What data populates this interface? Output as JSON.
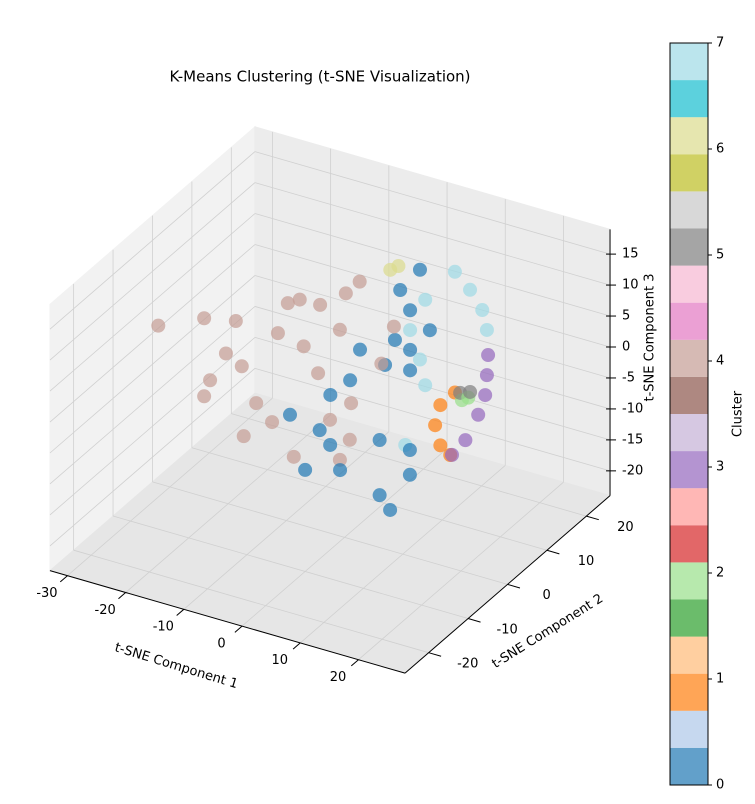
{
  "chart_data": {
    "type": "scatter3d",
    "title": "K-Means Clustering (t-SNE Visualization)",
    "x_label": "t-SNE Component 1",
    "y_label": "t-SNE Component 2",
    "z_label": "t-SNE Component 3",
    "xlim": [
      -33,
      28
    ],
    "ylim": [
      -26,
      26
    ],
    "zlim": [
      -24,
      19
    ],
    "xticks": [
      -30,
      -20,
      -10,
      0,
      10,
      20
    ],
    "yticks": [
      -20,
      -10,
      0,
      10,
      20
    ],
    "zticks": [
      -20,
      -15,
      -10,
      -5,
      0,
      5,
      10,
      15
    ],
    "grid": true,
    "alpha": 0.7,
    "series": [
      {
        "color": "#1f77b4",
        "x": [
          2.8,
          -0.6,
          1.1,
          4.5,
          -1.5,
          1.1,
          -3.2,
          -7.5,
          -9.2,
          -12.6,
          1.1,
          -2.6,
          2.5,
          4.3,
          0,
          6,
          12.8,
          18,
          12.8,
          18,
          14.6
        ],
        "y": [
          15,
          15,
          15,
          15,
          15,
          15,
          15,
          15,
          15,
          15,
          15,
          -10,
          -10,
          -10,
          -10,
          -10,
          -10,
          -10,
          -10,
          -10,
          -10
        ],
        "z": [
          11.7,
          7.5,
          4.7,
          2.4,
          -0.8,
          -1.7,
          -5.3,
          -4,
          -9.4,
          -12.7,
          -5,
          0.6,
          -0.5,
          -2.4,
          -7.6,
          -6,
          0.7,
          0.5,
          -8.2,
          -3.5,
          -10.1
        ]
      },
      {
        "color": "#ff7f0e",
        "x": [
          8.8,
          6.3,
          5.4,
          6.3,
          8
        ],
        "y": [
          15,
          15,
          15,
          15,
          15
        ],
        "z": [
          -6.5,
          -9.2,
          -12.7,
          -15.7,
          -16.8
        ]
      },
      {
        "color": "#98df8a",
        "x": [
          10,
          11.1
        ],
        "y": [
          15,
          15
        ],
        "z": [
          -7.4,
          -6.7
        ]
      },
      {
        "color": "#9467bd",
        "x": [
          14.5,
          14.3,
          14,
          12.8,
          10.6,
          8.3
        ],
        "y": [
          15,
          15,
          15,
          15,
          15,
          15
        ],
        "z": [
          1.1,
          -2.2,
          -5.5,
          -9,
          -13.7,
          -16.7
        ]
      },
      {
        "color": "#c49c94",
        "x": [
          -32,
          -24.8,
          -18,
          -11.1,
          -4.2,
          0.9,
          2.6,
          -7.7,
          -16.3,
          -23.1,
          -24.8,
          -14.5,
          -5.9,
          -0.8,
          1.8,
          0.9,
          -18,
          -11.1,
          -2.5,
          7.8,
          7,
          -7.7,
          -12.8,
          -19.7,
          -0.8,
          -9.4
        ],
        "y": [
          0,
          1,
          -1,
          2,
          0,
          -1,
          0,
          1,
          -2,
          0,
          1,
          -1,
          2,
          0,
          -1,
          0,
          1,
          -2,
          0,
          1,
          -1,
          0,
          2,
          -1,
          0,
          1
        ],
        "z": [
          1.5,
          4.1,
          6.6,
          9.7,
          12.4,
          16.2,
          18,
          4.2,
          0.3,
          -4.9,
          -8.5,
          -5.7,
          -0.2,
          9.3,
          -1.3,
          -8,
          -13.1,
          -7.3,
          -5.7,
          11.6,
          6.5,
          12.3,
          4.4,
          0.9,
          -11.7,
          -14.1
        ]
      },
      {
        "color": "#7f7f7f",
        "x": [
          9.7,
          11.4
        ],
        "y": [
          15,
          15
        ],
        "z": [
          -6.3,
          -5.7
        ]
      },
      {
        "color": "#dbdb8d",
        "x": [
          -2.3,
          -0.9
        ],
        "y": [
          15,
          15
        ],
        "z": [
          10.3,
          11.3
        ]
      },
      {
        "color": "#9edae5",
        "x": [
          8.8,
          11.4,
          13.5,
          14.3,
          3.7,
          2.8,
          3.7,
          17.2,
          1.1
        ],
        "y": [
          15,
          15,
          15,
          15,
          15,
          15,
          15,
          -10,
          15
        ],
        "z": [
          13,
          10.8,
          8.1,
          5.1,
          7.1,
          -2.8,
          -6.7,
          1.1,
          1.5
        ]
      }
    ],
    "colorbar": {
      "label": "Cluster",
      "lim": [
        0,
        7
      ],
      "ticks": [
        0,
        1,
        2,
        3,
        4,
        5,
        6,
        7
      ],
      "colors": [
        "#1f77b4",
        "#aec7e8",
        "#ff7f0e",
        "#ffbb78",
        "#2ca02c",
        "#98df8a",
        "#d62728",
        "#ff9896",
        "#9467bd",
        "#c5b0d5",
        "#8c564b",
        "#c49c94",
        "#e377c2",
        "#f7b6d2",
        "#7f7f7f",
        "#c7c7c7",
        "#bcbd22",
        "#dbdb8d",
        "#17becf",
        "#9edae5"
      ]
    }
  }
}
